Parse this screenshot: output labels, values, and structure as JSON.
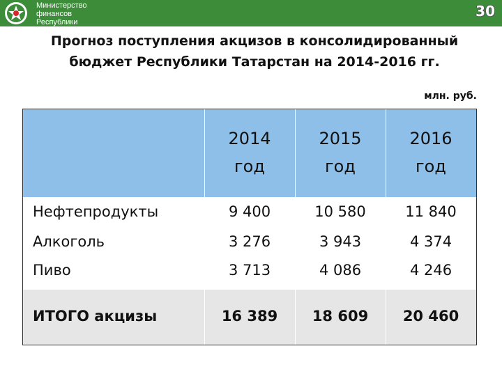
{
  "header": {
    "ministry_lines": [
      "Министерство",
      "финансов",
      "Республики"
    ],
    "page_number": "30",
    "colors": {
      "bar": "#3c8c3a",
      "table_header": "#8dbfe9",
      "total_row": "#e6e6e6"
    },
    "logo_icon": "tatarstan-emblem-icon"
  },
  "title": {
    "line1": "Прогноз поступления акцизов в консолидированный",
    "line2": "бюджет Республики Татарстан на 2014-2016 гг."
  },
  "units": "млн. руб.",
  "table": {
    "columns": [
      {
        "year": "2014",
        "suffix": "год"
      },
      {
        "year": "2015",
        "suffix": "год"
      },
      {
        "year": "2016",
        "suffix": "год"
      }
    ],
    "rows": [
      {
        "label": "Нефтепродукты",
        "values": [
          "9 400",
          "10 580",
          "11 840"
        ]
      },
      {
        "label": "Алкоголь",
        "values": [
          "3 276",
          "3 943",
          "4 374"
        ]
      },
      {
        "label": "Пиво",
        "values": [
          "3 713",
          "4 086",
          "4 246"
        ]
      }
    ],
    "total": {
      "label": "ИТОГО акцизы",
      "values": [
        "16 389",
        "18 609",
        "20 460"
      ]
    }
  }
}
